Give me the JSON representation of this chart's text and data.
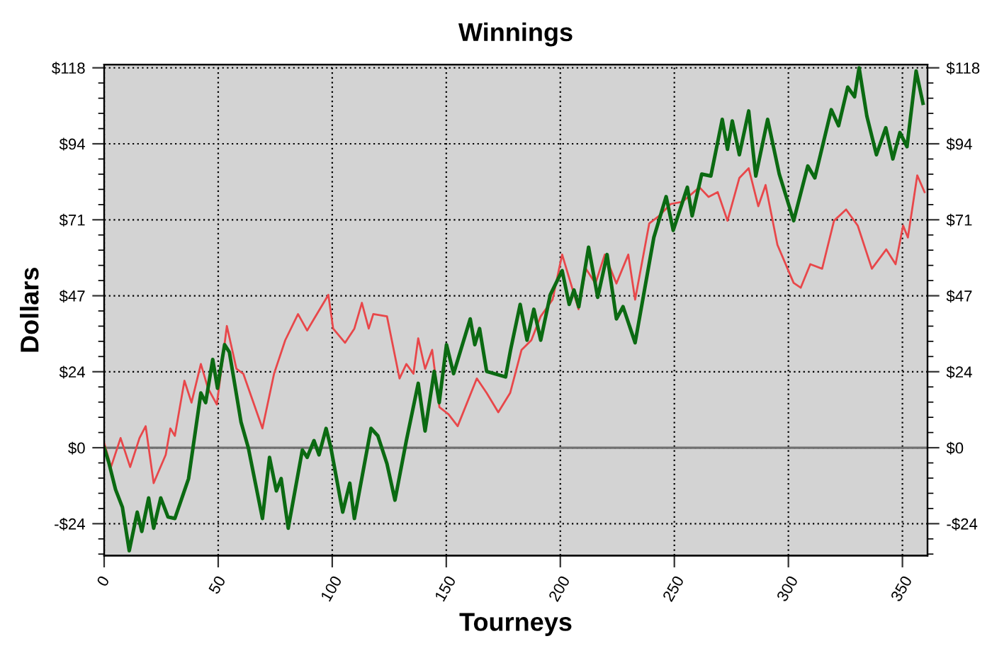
{
  "chart_data": {
    "type": "line",
    "title": "Winnings",
    "xlabel": "Tourneys",
    "ylabel": "Dollars",
    "xlim": [
      0,
      361
    ],
    "xticks": [
      0,
      50,
      100,
      150,
      200,
      250,
      300,
      350
    ],
    "ylim": [
      -33.5,
      119
    ],
    "yticks": [
      {
        "value": -23.6,
        "label": "-$24"
      },
      {
        "value": 0,
        "label": "$0"
      },
      {
        "value": 23.6,
        "label": "$24"
      },
      {
        "value": 47.2,
        "label": "$47"
      },
      {
        "value": 70.8,
        "label": "$71"
      },
      {
        "value": 94.4,
        "label": "$94"
      },
      {
        "value": 118,
        "label": "$118"
      }
    ],
    "y2lim": [
      -33.5,
      119
    ],
    "y2ticks": [
      {
        "value": -23.6,
        "label": "-$24"
      },
      {
        "value": 0,
        "label": "$0"
      },
      {
        "value": 23.6,
        "label": "$24"
      },
      {
        "value": 47.2,
        "label": "$47"
      },
      {
        "value": 70.8,
        "label": "$71"
      },
      {
        "value": 94.4,
        "label": "$94"
      },
      {
        "value": 118,
        "label": "$118"
      }
    ],
    "grid": true,
    "line_style": "solid",
    "ref_lines": [
      {
        "axis": "y",
        "value": 0,
        "label": null,
        "color": "#707070"
      }
    ],
    "series": [
      {
        "color": "#e8474a",
        "x": [
          0,
          3,
          7.2,
          11.4,
          15.5,
          18.2,
          21.7,
          27,
          29,
          31,
          35.2,
          38.3,
          42.4,
          45.5,
          49.4,
          53.8,
          58,
          61,
          69.4,
          74.5,
          79.4,
          85,
          89,
          92,
          98.3,
          100.4,
          105.6,
          109.7,
          113,
          116,
          118,
          124,
          129.5,
          132.5,
          135.6,
          137.7,
          140.7,
          143.8,
          147,
          151,
          155,
          163.4,
          167.7,
          172.8,
          178,
          183,
          187.3,
          191.4,
          196.6,
          200.8,
          203.9,
          208,
          211.2,
          215.4,
          219.5,
          224.6,
          229.8,
          232.8,
          239,
          243.3,
          248.4,
          253.6,
          261,
          265,
          269,
          273.3,
          278.5,
          282.6,
          286.8,
          290,
          295.2,
          302.3,
          305.4,
          309.6,
          314.8,
          320,
          325.3,
          330.4,
          336.6,
          342.9,
          347,
          350.3,
          352.4,
          356.5,
          359.7
        ],
        "values": [
          1.5,
          -6,
          3,
          -6,
          3,
          6.7,
          -11,
          -2.2,
          6,
          3.7,
          20.8,
          14,
          26,
          18.5,
          13.4,
          37.8,
          24.5,
          23,
          6,
          23,
          33.4,
          41.5,
          36.4,
          40,
          47.5,
          37,
          32.6,
          37,
          45,
          37,
          41.5,
          40.8,
          21.5,
          26,
          23,
          34,
          24.5,
          30.4,
          12.6,
          10.4,
          6.7,
          21.5,
          17,
          11,
          17,
          30.4,
          33.4,
          40.8,
          46,
          60,
          52.7,
          43,
          55.6,
          51,
          60,
          51,
          60,
          46,
          69.7,
          72,
          75.7,
          76.4,
          80.9,
          77.9,
          79.4,
          70.5,
          83.8,
          86.8,
          75,
          81.6,
          63,
          51.2,
          49.7,
          57,
          55.6,
          70.5,
          74,
          69,
          55.6,
          61.6,
          57,
          69,
          65.3,
          84.6,
          79.4
        ]
      },
      {
        "color": "#0b6a12",
        "x": [
          0,
          2,
          5,
          8,
          11,
          14.5,
          16.5,
          19.5,
          21.7,
          24.8,
          28,
          31,
          37,
          42.4,
          44.5,
          47.6,
          49.7,
          52.8,
          54.9,
          60,
          63.2,
          69.4,
          72.5,
          75.5,
          77.6,
          80.7,
          86.9,
          89,
          92,
          94.2,
          97.3,
          99.4,
          104.6,
          107.7,
          109.7,
          117,
          120,
          124,
          127.5,
          132.5,
          137.7,
          140.7,
          144.7,
          146.9,
          150.1,
          153.2,
          160.5,
          162.5,
          164.6,
          167.7,
          176,
          178.2,
          182.4,
          185.4,
          188.4,
          191.4,
          195.6,
          200.8,
          203.9,
          206,
          208.1,
          212.4,
          216.4,
          220.5,
          224.6,
          227.5,
          232.8,
          241,
          246.4,
          249.5,
          255.7,
          257.8,
          262,
          266,
          271,
          273.3,
          275.4,
          278.5,
          282.6,
          285.7,
          290.9,
          296,
          302.3,
          308.5,
          311.6,
          318.8,
          322,
          326,
          329,
          331,
          334.4,
          338.6,
          342.7,
          345.8,
          348.9,
          352,
          356,
          359
        ],
        "values": [
          0,
          -4.5,
          -13,
          -18.5,
          -32,
          -20,
          -26,
          -15.6,
          -25,
          -15.6,
          -21.5,
          -22,
          -9.6,
          17,
          14,
          27.4,
          18.5,
          32,
          29.7,
          8,
          0,
          -22,
          -3,
          -13.4,
          -9.6,
          -25,
          -0.7,
          -3,
          2.2,
          -2.2,
          6,
          0,
          -20,
          -11,
          -22,
          6,
          3.7,
          -5,
          -16.3,
          2.2,
          20,
          5.2,
          23.7,
          14,
          32,
          23,
          40,
          32,
          37,
          23.7,
          22,
          30.4,
          44.5,
          33.4,
          43,
          33.4,
          47.5,
          55,
          44.5,
          49,
          43.8,
          62.3,
          46.7,
          60,
          40,
          43.8,
          32.6,
          65.3,
          78,
          67.5,
          80.9,
          72,
          85,
          84.4,
          102,
          92.7,
          101.5,
          91,
          104.6,
          84.4,
          102,
          85,
          70.5,
          87.5,
          83.8,
          105,
          100,
          112,
          109,
          118,
          103,
          91,
          99.4,
          89.7,
          97.9,
          93.5,
          117,
          107
        ]
      }
    ]
  }
}
